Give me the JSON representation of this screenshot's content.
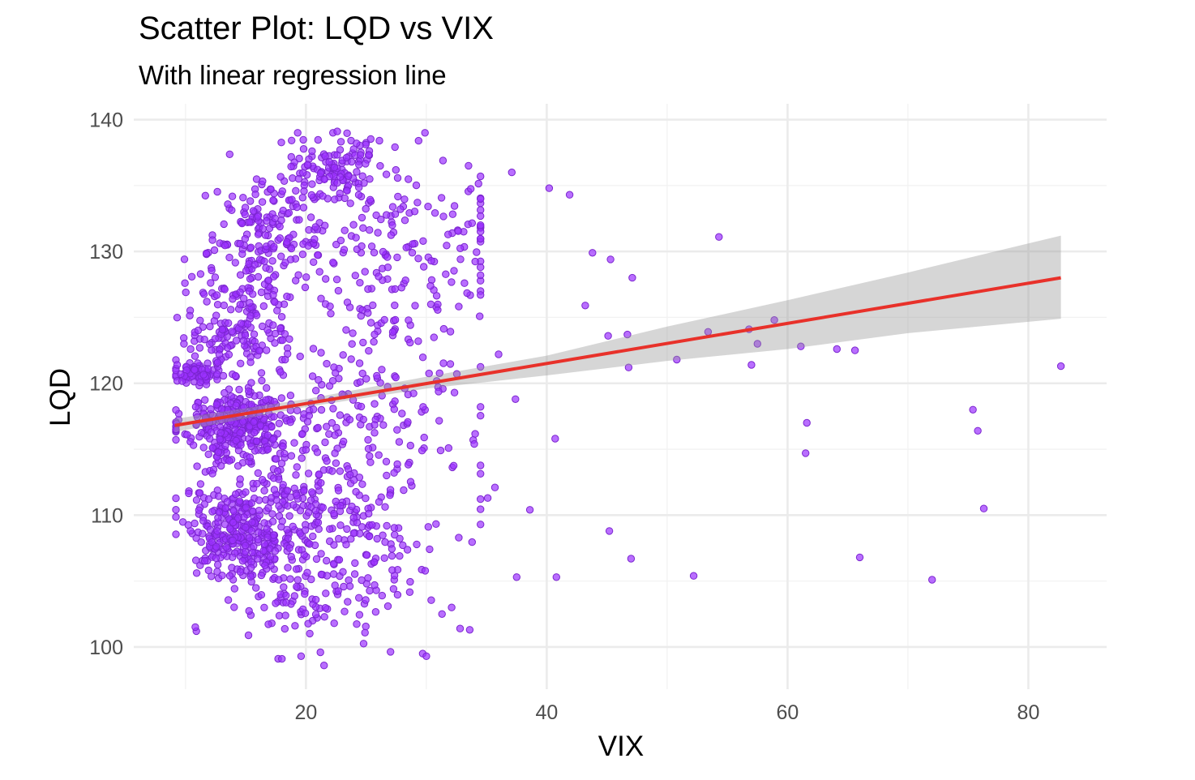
{
  "colors": {
    "points": "#9b30ff",
    "regression_line": "#e8312a",
    "confidence_band": "#999999",
    "grid": "#ebebeb",
    "background": "#ffffff"
  },
  "chart_data": {
    "type": "scatter",
    "title": "Scatter Plot: LQD vs VIX",
    "subtitle": "With linear regression line",
    "xlabel": "VIX",
    "ylabel": "LQD",
    "xlim": [
      5.7,
      86.5
    ],
    "ylim": [
      96.8,
      141.2
    ],
    "x_ticks": [
      20,
      40,
      60,
      80
    ],
    "x_tick_labels": [
      "20",
      "40",
      "60",
      "80"
    ],
    "y_ticks": [
      100,
      110,
      120,
      130,
      140
    ],
    "y_tick_labels": [
      "100",
      "110",
      "120",
      "130",
      "140"
    ],
    "grid": true,
    "legend": "none",
    "regression": {
      "method": "lm",
      "x_range": [
        9.1,
        82.7
      ],
      "y_start": 116.8,
      "y_end": 128.0,
      "ci_at_x": [
        [
          9.1,
          116.3,
          117.3
        ],
        [
          20,
          118.2,
          118.8
        ],
        [
          30,
          119.6,
          120.5
        ],
        [
          40,
          120.6,
          122.1
        ],
        [
          50,
          121.7,
          124.3
        ],
        [
          60,
          122.6,
          126.3
        ],
        [
          70,
          123.8,
          128.4
        ],
        [
          82.7,
          124.9,
          131.2
        ]
      ]
    },
    "outliers": [
      {
        "x": 54.3,
        "y": 131.1
      },
      {
        "x": 47.1,
        "y": 128.0
      },
      {
        "x": 45.3,
        "y": 129.4
      },
      {
        "x": 43.8,
        "y": 129.9
      },
      {
        "x": 43.2,
        "y": 125.9
      },
      {
        "x": 41.9,
        "y": 134.3
      },
      {
        "x": 40.2,
        "y": 134.8
      },
      {
        "x": 37.1,
        "y": 136.0
      },
      {
        "x": 45.1,
        "y": 123.6
      },
      {
        "x": 46.7,
        "y": 123.7
      },
      {
        "x": 46.8,
        "y": 121.2
      },
      {
        "x": 50.8,
        "y": 121.8
      },
      {
        "x": 53.4,
        "y": 123.9
      },
      {
        "x": 56.8,
        "y": 124.1
      },
      {
        "x": 57.5,
        "y": 123.0
      },
      {
        "x": 58.9,
        "y": 124.8
      },
      {
        "x": 57.0,
        "y": 121.4
      },
      {
        "x": 61.1,
        "y": 122.8
      },
      {
        "x": 64.1,
        "y": 122.6
      },
      {
        "x": 65.6,
        "y": 122.5
      },
      {
        "x": 82.7,
        "y": 121.3
      },
      {
        "x": 61.6,
        "y": 117.0
      },
      {
        "x": 61.5,
        "y": 114.7
      },
      {
        "x": 75.4,
        "y": 118.0
      },
      {
        "x": 75.8,
        "y": 116.4
      },
      {
        "x": 76.3,
        "y": 110.5
      },
      {
        "x": 66.0,
        "y": 106.8
      },
      {
        "x": 72.0,
        "y": 105.1
      },
      {
        "x": 52.2,
        "y": 105.4
      },
      {
        "x": 47.0,
        "y": 106.7
      },
      {
        "x": 45.2,
        "y": 108.8
      },
      {
        "x": 40.8,
        "y": 105.3
      },
      {
        "x": 37.5,
        "y": 105.3
      },
      {
        "x": 38.6,
        "y": 110.4
      },
      {
        "x": 40.7,
        "y": 115.8
      },
      {
        "x": 37.4,
        "y": 118.8
      },
      {
        "x": 36.0,
        "y": 122.2
      },
      {
        "x": 35.1,
        "y": 111.3
      },
      {
        "x": 35.7,
        "y": 112.1
      },
      {
        "x": 29.7,
        "y": 99.5
      },
      {
        "x": 30.0,
        "y": 99.3
      },
      {
        "x": 31.3,
        "y": 102.5
      },
      {
        "x": 32.1,
        "y": 103.0
      },
      {
        "x": 32.8,
        "y": 101.4
      },
      {
        "x": 33.6,
        "y": 101.3
      },
      {
        "x": 21.5,
        "y": 98.6
      },
      {
        "x": 21.2,
        "y": 99.6
      },
      {
        "x": 19.6,
        "y": 99.3
      },
      {
        "x": 18.0,
        "y": 99.1
      },
      {
        "x": 22.6,
        "y": 139.1
      },
      {
        "x": 24.2,
        "y": 138.2
      },
      {
        "x": 26.1,
        "y": 138.4
      },
      {
        "x": 33.5,
        "y": 136.5
      },
      {
        "x": 9.3,
        "y": 121.4
      },
      {
        "x": 9.6,
        "y": 120.7
      }
    ],
    "clusters": [
      {
        "cx": 10.8,
        "cy": 120.8,
        "sx": 1.0,
        "sy": 0.5,
        "n": 70
      },
      {
        "cx": 14.2,
        "cy": 116.9,
        "sx": 2.2,
        "sy": 1.4,
        "n": 300
      },
      {
        "cx": 14.5,
        "cy": 108.6,
        "sx": 2.3,
        "sy": 1.7,
        "n": 280
      },
      {
        "cx": 18.5,
        "cy": 112.5,
        "sx": 3.2,
        "sy": 3.6,
        "n": 220
      },
      {
        "cx": 17.0,
        "cy": 131.5,
        "sx": 2.6,
        "sy": 2.4,
        "n": 170
      },
      {
        "cx": 14.3,
        "cy": 123.3,
        "sx": 2.0,
        "sy": 1.2,
        "n": 110
      },
      {
        "cx": 15.0,
        "cy": 127.2,
        "sx": 2.3,
        "sy": 1.3,
        "n": 70
      },
      {
        "cx": 22.5,
        "cy": 136.2,
        "sx": 1.9,
        "sy": 1.4,
        "n": 110
      },
      {
        "cx": 25.0,
        "cy": 118.0,
        "sx": 3.6,
        "sy": 6.0,
        "n": 170
      },
      {
        "cx": 26.5,
        "cy": 130.5,
        "sx": 4.0,
        "sy": 3.3,
        "n": 110
      },
      {
        "cx": 24.5,
        "cy": 107.0,
        "sx": 3.5,
        "sy": 3.0,
        "n": 110
      },
      {
        "cx": 18.5,
        "cy": 103.5,
        "sx": 2.4,
        "sy": 2.0,
        "n": 60
      },
      {
        "cx": 31.0,
        "cy": 122.0,
        "sx": 3.2,
        "sy": 8.0,
        "n": 50
      },
      {
        "cx": 36.0,
        "cy": 131.0,
        "sx": 2.6,
        "sy": 2.6,
        "n": 25
      }
    ]
  }
}
